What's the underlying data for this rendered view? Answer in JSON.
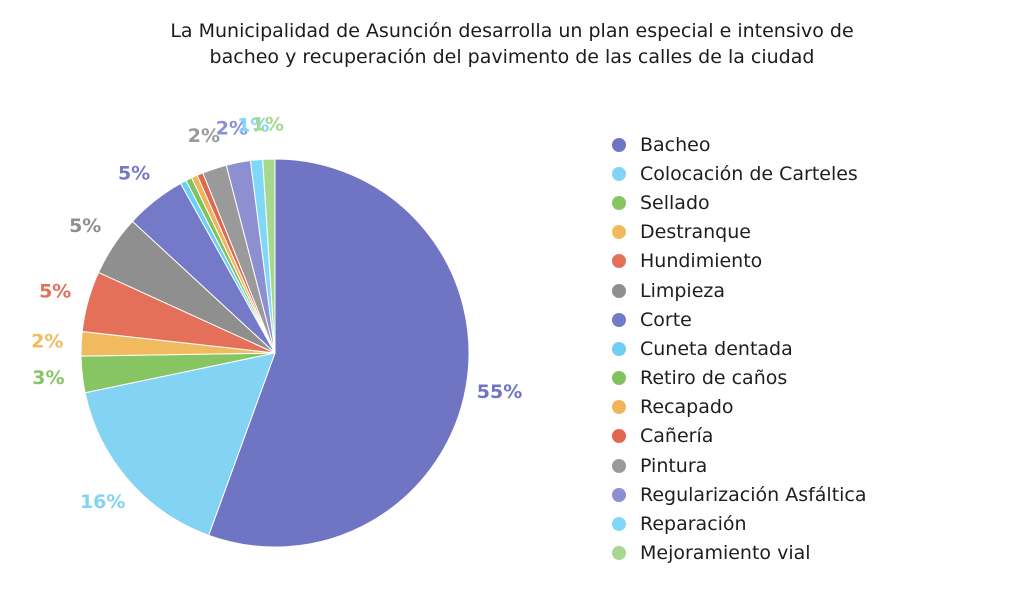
{
  "title_lines": [
    "La Municipalidad de Asunción desarrolla un plan especial e intensivo de",
    "bacheo y recuperación del pavimento de las calles de la ciudad"
  ],
  "chart_data": {
    "type": "pie",
    "title": "La Municipalidad de Asunción desarrolla un plan especial e intensivo de bacheo y recuperación del pavimento de las calles de la ciudad",
    "legend_position": "right",
    "start": "top, clockwise",
    "slices": [
      {
        "label": "Bacheo",
        "value": 55,
        "display": "55%",
        "color": "#6f74c3"
      },
      {
        "label": "Colocación de Carteles",
        "value": 16,
        "display": "16%",
        "color": "#83d3f4"
      },
      {
        "label": "Sellado",
        "value": 3,
        "display": "3%",
        "color": "#86c562"
      },
      {
        "label": "Destranque",
        "value": 2,
        "display": "2%",
        "color": "#f1ba5e"
      },
      {
        "label": "Hundimiento",
        "value": 5,
        "display": "5%",
        "color": "#e4705a"
      },
      {
        "label": "Limpieza",
        "value": 5,
        "display": "5%",
        "color": "#8f8f8f"
      },
      {
        "label": "Corte",
        "value": 5,
        "display": "5%",
        "color": "#7479c8"
      },
      {
        "label": "Cuneta dentada",
        "value": 0.5,
        "display": "",
        "color": "#6dcff2"
      },
      {
        "label": "Retiro de caños",
        "value": 0.5,
        "display": "",
        "color": "#7fc35f"
      },
      {
        "label": "Recapado",
        "value": 0.5,
        "display": "",
        "color": "#f2b45a"
      },
      {
        "label": "Cañería",
        "value": 0.5,
        "display": "",
        "color": "#e1674f"
      },
      {
        "label": "Pintura",
        "value": 2,
        "display": "2%",
        "color": "#9a9a9a"
      },
      {
        "label": "Regularización Asfáltica",
        "value": 2,
        "display": "2%",
        "color": "#8c90d0"
      },
      {
        "label": "Reparación",
        "value": 1,
        "display": "1%",
        "color": "#7fd8f7"
      },
      {
        "label": "Mejoramiento vial",
        "value": 1,
        "display": "1%",
        "color": "#a6d88f"
      }
    ]
  }
}
